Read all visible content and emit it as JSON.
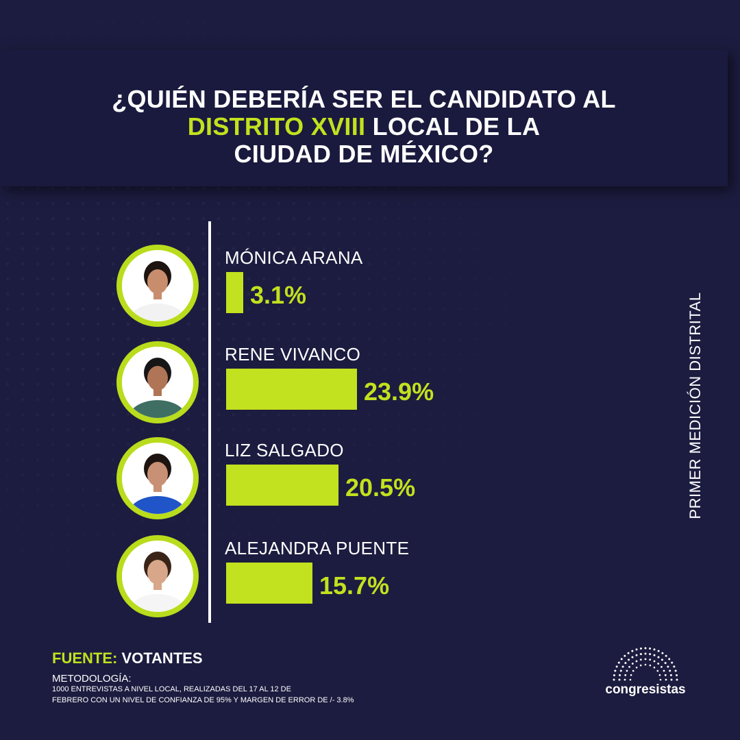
{
  "title": {
    "line1": "¿QUIÉN DEBERÍA SER EL CANDIDATO AL",
    "line2_accent": "DISTRITO XVIII",
    "line2_rest": " LOCAL DE LA",
    "line3": "CIUDAD DE MÉXICO?"
  },
  "side_label": "PRIMER MEDICIÓN DISTRITAL",
  "source": {
    "label": "FUENTE:",
    "value": "VOTANTES"
  },
  "methodology": {
    "title": "METODOLOGÍA:",
    "line1": "1000 ENTREVISTAS A NIVEL LOCAL, REALIZADAS DEL 17 AL 12 DE",
    "line2": "FEBRERO CON UN NIVEL DE CONFIANZA DE 95% Y MARGEN DE ERROR DE /- 3.8%"
  },
  "logo": {
    "text": "congresistas"
  },
  "colors": {
    "background": "#1c1c40",
    "accent": "#c2e11e",
    "ring": "#b9dc1c",
    "text": "#ffffff"
  },
  "chart_data": {
    "type": "bar",
    "orientation": "horizontal",
    "categories": [
      "MÓNICA ARANA",
      "RENE VIVANCO",
      "LIZ SALGADO",
      "ALEJANDRA PUENTE"
    ],
    "values": [
      3.1,
      23.9,
      20.5,
      15.7
    ],
    "value_labels": [
      "3.1%",
      "23.9%",
      "20.5%",
      "15.7%"
    ],
    "xlim": [
      0,
      100
    ],
    "grid": false,
    "legend": "none"
  }
}
